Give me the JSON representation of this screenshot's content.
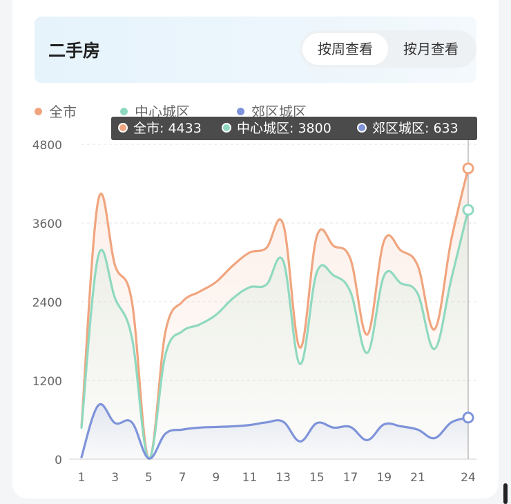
{
  "header": {
    "title": "二手房",
    "toggle": {
      "active": "按周查看",
      "inactive": "按月查看"
    }
  },
  "legend": [
    {
      "label": "全市",
      "color": "#f0a57f"
    },
    {
      "label": "中心城区",
      "color": "#8fd9c0"
    },
    {
      "label": "郊区城区",
      "color": "#7e93d9"
    }
  ],
  "tooltip": {
    "items": [
      {
        "text": "全市: 4433",
        "color": "#f0a57f"
      },
      {
        "text": "中心城区: 3800",
        "color": "#8fd9c0"
      },
      {
        "text": "郊区城区: 633",
        "color": "#7e93d9"
      }
    ]
  },
  "chart_data": {
    "type": "area",
    "x": [
      1,
      2,
      3,
      4,
      5,
      6,
      7,
      8,
      9,
      10,
      11,
      12,
      13,
      14,
      15,
      16,
      17,
      18,
      19,
      20,
      21,
      22,
      23,
      24
    ],
    "x_tick_labels": [
      "1",
      "3",
      "5",
      "7",
      "9",
      "11",
      "13",
      "15",
      "17",
      "19",
      "21",
      "24"
    ],
    "y_ticks": [
      0,
      1200,
      2400,
      3600,
      4800
    ],
    "ylim": [
      0,
      4800
    ],
    "series": [
      {
        "name": "全市",
        "color": "#f0a57f",
        "values": [
          500,
          3950,
          2950,
          2400,
          10,
          1950,
          2400,
          2550,
          2700,
          2950,
          3150,
          3220,
          3580,
          1700,
          3400,
          3250,
          3050,
          1900,
          3330,
          3180,
          2950,
          1980,
          3350,
          4433
        ]
      },
      {
        "name": "中心城区",
        "color": "#8fd9c0",
        "values": [
          480,
          3100,
          2450,
          1850,
          10,
          1600,
          1950,
          2050,
          2200,
          2450,
          2620,
          2660,
          3020,
          1450,
          2850,
          2800,
          2550,
          1620,
          2800,
          2680,
          2520,
          1680,
          2750,
          3800
        ]
      },
      {
        "name": "郊区城区",
        "color": "#7e93d9",
        "values": [
          30,
          820,
          550,
          560,
          10,
          390,
          450,
          480,
          490,
          500,
          520,
          560,
          570,
          270,
          550,
          480,
          490,
          290,
          530,
          500,
          450,
          320,
          560,
          633
        ]
      }
    ]
  }
}
